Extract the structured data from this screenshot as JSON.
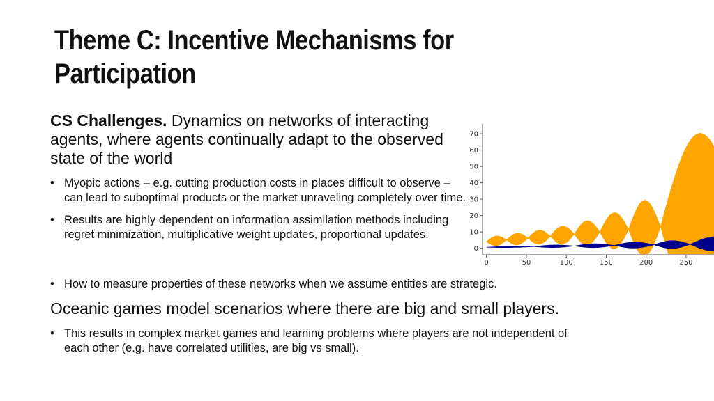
{
  "slide": {
    "title": "Theme C: Incentive Mechanisms for Participation",
    "intro_bold": "CS Challenges.",
    "intro_rest": " Dynamics on networks of interacting agents, where agents continually adapt to the observed state of the world",
    "bullets_top": [
      "Myopic actions – e.g. cutting production costs in places difficult to observe – can lead to suboptimal products or the market unraveling completely over time.",
      "Results are highly dependent on information assimilation methods including regret minimization, multiplicative weight updates, proportional updates."
    ],
    "bullet_mid": "How to measure properties of these networks when we assume entities are strategic.",
    "oceanic": "Oceanic games model scenarios where there are big and small players.",
    "bullet_bottom": "This results in complex market games and learning problems where players are not independent of each other (e.g. have correlated utilities, are big vs small).",
    "bullet_char": "•"
  },
  "chart_data": {
    "type": "area",
    "x_ticks": [
      "0",
      "50",
      "100",
      "150",
      "200",
      "250"
    ],
    "y_ticks": [
      "0",
      "10",
      "20",
      "30",
      "40",
      "50",
      "60",
      "70"
    ],
    "xlim": [
      -5,
      285
    ],
    "ylim": [
      -4,
      76
    ],
    "grid": false,
    "series": [
      {
        "color": "#ffa500",
        "beats": [
          {
            "x0": 0,
            "x1": 25,
            "amp": 3
          },
          {
            "x0": 25,
            "x1": 52,
            "amp": 3.6
          },
          {
            "x0": 52,
            "x1": 80,
            "amp": 4.3
          },
          {
            "x0": 80,
            "x1": 110,
            "amp": 5.5
          },
          {
            "x0": 110,
            "x1": 142,
            "amp": 7.5
          },
          {
            "x0": 142,
            "x1": 178,
            "amp": 11
          },
          {
            "x0": 178,
            "x1": 218,
            "amp": 17
          },
          {
            "x0": 218,
            "x1": 316,
            "amp": 55
          }
        ],
        "center_start": 4,
        "center_end": 16
      },
      {
        "color": "#00008b",
        "beats": [
          {
            "x0": 0,
            "x1": 60,
            "amp": 0.4
          },
          {
            "x0": 60,
            "x1": 110,
            "amp": 0.8
          },
          {
            "x0": 110,
            "x1": 160,
            "amp": 1.2
          },
          {
            "x0": 160,
            "x1": 210,
            "amp": 1.8
          },
          {
            "x0": 210,
            "x1": 255,
            "amp": 2.4
          },
          {
            "x0": 255,
            "x1": 320,
            "amp": 4.5
          }
        ],
        "center_start": 0.6,
        "center_end": 2.6
      }
    ]
  }
}
